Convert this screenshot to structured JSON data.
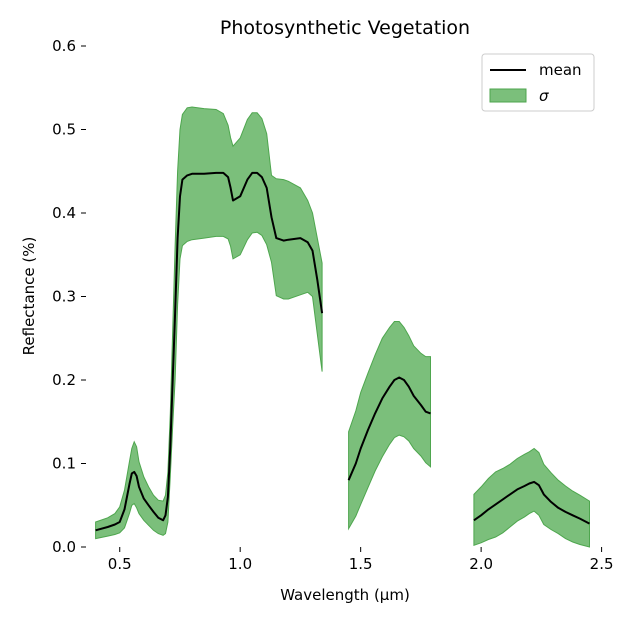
{
  "chart_data": {
    "type": "line",
    "title": "Photosynthetic Vegetation",
    "xlabel": "Wavelength (μm)",
    "ylabel": "Reflectance (%)",
    "xlim": [
      0.36,
      2.51
    ],
    "ylim": [
      0,
      0.6
    ],
    "xticks": [
      0.5,
      1.0,
      1.5,
      2.0,
      2.5
    ],
    "xtick_labels": [
      "0.5",
      "1.0",
      "1.5",
      "2.0",
      "2.5"
    ],
    "yticks": [
      0.0,
      0.1,
      0.2,
      0.3,
      0.4,
      0.5,
      0.6
    ],
    "ytick_labels": [
      "0.0",
      "0.1",
      "0.2",
      "0.3",
      "0.4",
      "0.5",
      "0.6"
    ],
    "grid": false,
    "legend": {
      "position": "top-right",
      "entries": [
        {
          "label": "mean",
          "kind": "line",
          "color": "#000000"
        },
        {
          "label": "σ",
          "kind": "patch",
          "color": "#7bbf7b"
        }
      ]
    },
    "colors": {
      "mean": "#000000",
      "band_fill": "#7bbf7b",
      "band_edge": "#4ea64e"
    },
    "segments": [
      {
        "x": [
          0.4,
          0.45,
          0.48,
          0.5,
          0.52,
          0.54,
          0.55,
          0.56,
          0.57,
          0.58,
          0.6,
          0.62,
          0.64,
          0.66,
          0.68,
          0.69,
          0.7,
          0.71,
          0.72,
          0.73,
          0.74,
          0.75,
          0.76,
          0.78,
          0.8,
          0.85,
          0.9,
          0.93,
          0.95,
          0.96,
          0.97,
          1.0,
          1.03,
          1.05,
          1.07,
          1.09,
          1.11,
          1.13,
          1.15,
          1.18,
          1.2,
          1.25,
          1.28,
          1.3,
          1.32,
          1.34
        ],
        "mean": [
          0.02,
          0.024,
          0.027,
          0.03,
          0.045,
          0.075,
          0.088,
          0.09,
          0.085,
          0.072,
          0.058,
          0.05,
          0.042,
          0.035,
          0.032,
          0.038,
          0.06,
          0.12,
          0.2,
          0.28,
          0.37,
          0.42,
          0.44,
          0.445,
          0.447,
          0.447,
          0.448,
          0.448,
          0.443,
          0.43,
          0.415,
          0.42,
          0.44,
          0.448,
          0.448,
          0.443,
          0.43,
          0.395,
          0.37,
          0.367,
          0.368,
          0.37,
          0.365,
          0.355,
          0.32,
          0.28
        ],
        "upper": [
          0.03,
          0.035,
          0.04,
          0.048,
          0.068,
          0.102,
          0.118,
          0.126,
          0.12,
          0.102,
          0.084,
          0.072,
          0.062,
          0.056,
          0.055,
          0.062,
          0.09,
          0.16,
          0.26,
          0.36,
          0.45,
          0.5,
          0.518,
          0.526,
          0.527,
          0.525,
          0.524,
          0.519,
          0.505,
          0.49,
          0.48,
          0.49,
          0.512,
          0.52,
          0.52,
          0.513,
          0.495,
          0.445,
          0.441,
          0.44,
          0.438,
          0.43,
          0.415,
          0.4,
          0.37,
          0.34
        ],
        "lower": [
          0.01,
          0.013,
          0.015,
          0.017,
          0.023,
          0.04,
          0.05,
          0.052,
          0.047,
          0.04,
          0.032,
          0.026,
          0.02,
          0.016,
          0.014,
          0.016,
          0.03,
          0.085,
          0.145,
          0.2,
          0.29,
          0.345,
          0.361,
          0.366,
          0.368,
          0.37,
          0.372,
          0.372,
          0.369,
          0.36,
          0.345,
          0.35,
          0.368,
          0.376,
          0.377,
          0.373,
          0.362,
          0.341,
          0.301,
          0.297,
          0.297,
          0.302,
          0.305,
          0.3,
          0.255,
          0.21
        ]
      },
      {
        "x": [
          1.45,
          1.48,
          1.5,
          1.53,
          1.56,
          1.59,
          1.62,
          1.64,
          1.66,
          1.68,
          1.7,
          1.72,
          1.75,
          1.77,
          1.79
        ],
        "mean": [
          0.08,
          0.1,
          0.118,
          0.14,
          0.16,
          0.178,
          0.192,
          0.2,
          0.203,
          0.2,
          0.192,
          0.181,
          0.17,
          0.162,
          0.16
        ],
        "upper": [
          0.138,
          0.163,
          0.185,
          0.208,
          0.23,
          0.25,
          0.263,
          0.27,
          0.27,
          0.263,
          0.253,
          0.241,
          0.232,
          0.228,
          0.228
        ],
        "lower": [
          0.022,
          0.037,
          0.051,
          0.071,
          0.091,
          0.108,
          0.123,
          0.131,
          0.134,
          0.132,
          0.127,
          0.118,
          0.109,
          0.101,
          0.096
        ]
      },
      {
        "x": [
          1.97,
          2.0,
          2.03,
          2.06,
          2.09,
          2.12,
          2.15,
          2.18,
          2.2,
          2.22,
          2.24,
          2.26,
          2.29,
          2.32,
          2.35,
          2.38,
          2.41,
          2.45
        ],
        "mean": [
          0.032,
          0.038,
          0.045,
          0.051,
          0.057,
          0.063,
          0.069,
          0.073,
          0.076,
          0.078,
          0.074,
          0.063,
          0.054,
          0.047,
          0.042,
          0.038,
          0.034,
          0.028
        ],
        "upper": [
          0.063,
          0.072,
          0.082,
          0.09,
          0.094,
          0.099,
          0.106,
          0.111,
          0.114,
          0.118,
          0.113,
          0.099,
          0.089,
          0.08,
          0.073,
          0.067,
          0.062,
          0.055
        ],
        "lower": [
          0.002,
          0.005,
          0.009,
          0.012,
          0.017,
          0.024,
          0.031,
          0.036,
          0.04,
          0.043,
          0.038,
          0.027,
          0.021,
          0.016,
          0.01,
          0.006,
          0.003,
          0.0
        ]
      }
    ]
  }
}
